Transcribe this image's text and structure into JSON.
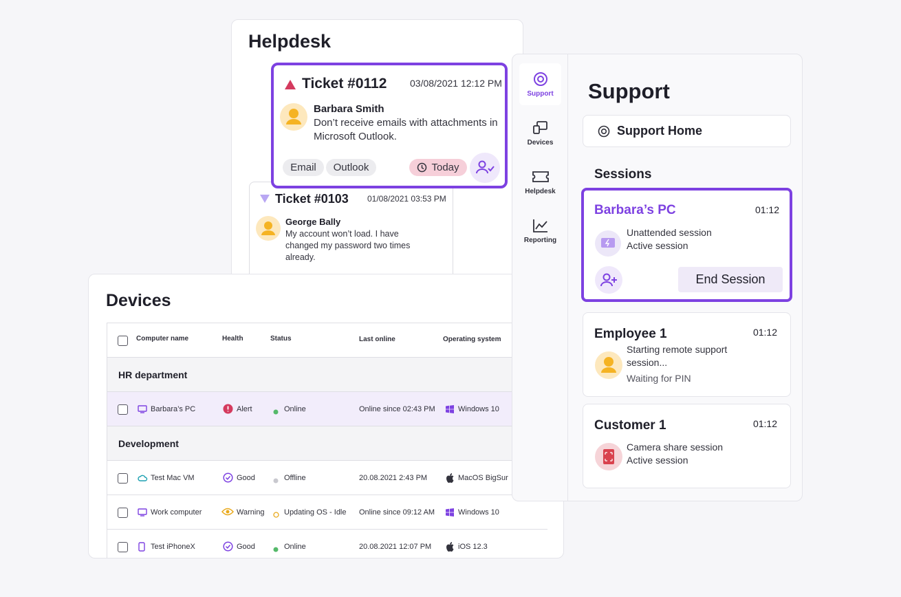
{
  "helpdesk": {
    "title": "Helpdesk",
    "tickets": [
      {
        "id": "Ticket #0112",
        "date": "03/08/2021 12:12 PM",
        "name": "Barbara Smith",
        "message": "Don’t receive emails with attachments in Microsoft Outlook.",
        "tags": [
          "Email",
          "Outlook"
        ],
        "due": "Today"
      },
      {
        "id": "Ticket #0103",
        "date": "01/08/2021 03:53 PM",
        "name": "George Bally",
        "message": "My account won’t load. I have changed my password two times already."
      }
    ]
  },
  "devices": {
    "title": "Devices",
    "columns": [
      "Computer name",
      "Health",
      "Status",
      "Last online",
      "Operating system"
    ],
    "groups": [
      {
        "name": "HR department",
        "rows": [
          [
            "Barbara’s PC",
            "Alert",
            "Online",
            "Online since 02:43 PM",
            "Windows 10"
          ]
        ]
      },
      {
        "name": "Development",
        "rows": [
          [
            "Test Mac VM",
            "Good",
            "Offline",
            "20.08.2021 2:43 PM",
            "MacOS BigSur"
          ],
          [
            "Work computer",
            "Warning",
            "Updating OS - Idle",
            "Online since 09:12 AM",
            "Windows 10"
          ],
          [
            "Test iPhoneX",
            "Good",
            "Online",
            "20.08.2021 12:07 PM",
            "iOS 12.3"
          ]
        ]
      }
    ]
  },
  "nav": [
    "Support",
    "Devices",
    "Helpdesk",
    "Reporting"
  ],
  "support": {
    "title": "Support",
    "home": "Support Home",
    "sessions_heading": "Sessions",
    "sessions": [
      {
        "name": "Barbara’s PC",
        "time": "01:12",
        "lines": [
          "Unattended session",
          "Active session"
        ],
        "action": "End Session"
      },
      {
        "name": "Employee 1",
        "time": "01:12",
        "lines": [
          "Starting remote support session...",
          "Waiting for PIN"
        ]
      },
      {
        "name": "Customer 1",
        "time": "01:12",
        "lines": [
          "Camera share session",
          "Active session"
        ]
      }
    ]
  }
}
